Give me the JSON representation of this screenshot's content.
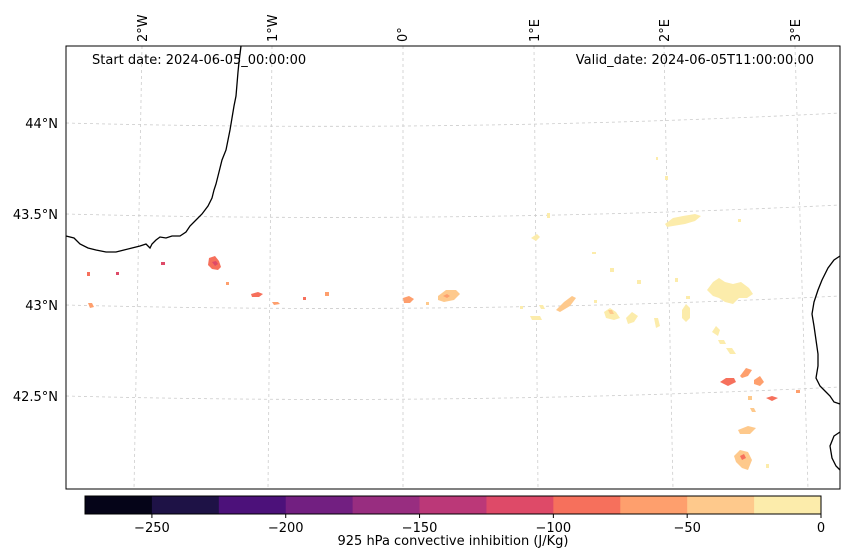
{
  "annotations": {
    "start_date": "Start date: 2024-06-05_00:00:00",
    "valid_date": "Valid_date: 2024-06-05T11:00:00.00"
  },
  "map": {
    "lon_labels": [
      "2°W",
      "1°W",
      "0°",
      "1°E",
      "2°E",
      "3°E"
    ],
    "lat_labels": [
      "44°N",
      "43.5°N",
      "43°N",
      "42.5°N"
    ],
    "gridlines": true,
    "coastline_color": "#000000"
  },
  "colorbar": {
    "label": "925 hPa convective inhibition (J/Kg)",
    "tick_labels": [
      "−250",
      "−200",
      "−150",
      "−100",
      "−50",
      "0"
    ],
    "range": [
      -275,
      0
    ],
    "step": 25,
    "colors": [
      "#050418",
      "#1e1246",
      "#4c117a",
      "#721f81",
      "#982d80",
      "#bb3878",
      "#de4a68",
      "#f6705c",
      "#fe9f6d",
      "#fec98c",
      "#fcecab"
    ]
  }
}
